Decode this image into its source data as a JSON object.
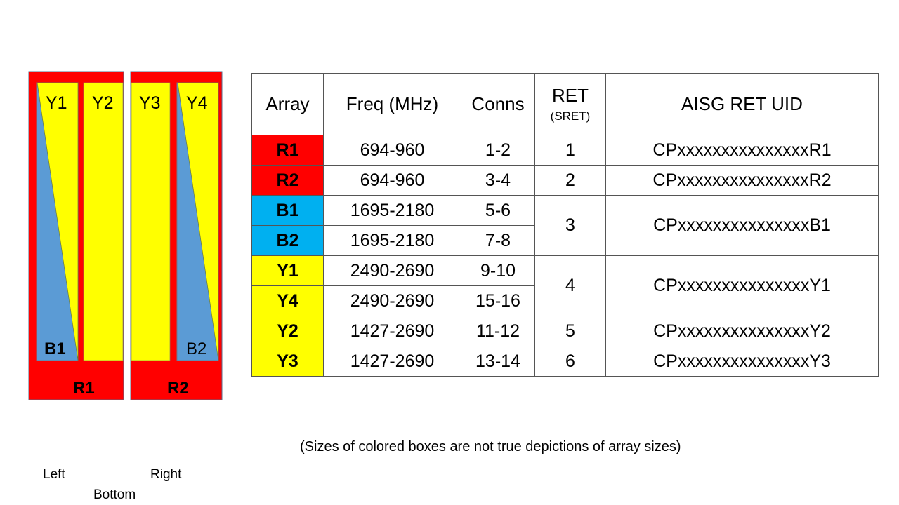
{
  "diagram": {
    "panels": [
      {
        "label": "R1",
        "columns": [
          "Y1",
          "Y2"
        ],
        "sub_label": "B1"
      },
      {
        "label": "R2",
        "columns": [
          "Y3",
          "Y4"
        ],
        "sub_label": "B2"
      }
    ],
    "orientation": {
      "left": "Left",
      "right": "Right",
      "bottom": "Bottom"
    },
    "colors": {
      "red": "#ff0000",
      "yellow": "#ffff00",
      "blue": "#5b9bd5",
      "cyan": "#00b0f0"
    }
  },
  "table": {
    "headers": {
      "array": "Array",
      "freq": "Freq (MHz)",
      "conns": "Conns",
      "ret": "RET",
      "ret_sub": "(SRET)",
      "uid": "AISG RET UID"
    },
    "rows": [
      {
        "array": "R1",
        "freq": "694-960",
        "conns": "1-2",
        "ret": "1",
        "uid": "CPxxxxxxxxxxxxxxxR1",
        "color": "#ff0000"
      },
      {
        "array": "R2",
        "freq": "694-960",
        "conns": "3-4",
        "ret": "2",
        "uid": "CPxxxxxxxxxxxxxxxR2",
        "color": "#ff0000"
      },
      {
        "array": "B1",
        "freq": "1695-2180",
        "conns": "5-6",
        "ret": "3",
        "uid": "CPxxxxxxxxxxxxxxxB1",
        "color": "#00b0f0"
      },
      {
        "array": "B2",
        "freq": "1695-2180",
        "conns": "7-8",
        "color": "#00b0f0"
      },
      {
        "array": "Y1",
        "freq": "2490-2690",
        "conns": "9-10",
        "ret": "4",
        "uid": "CPxxxxxxxxxxxxxxxY1",
        "color": "#ffff00"
      },
      {
        "array": "Y4",
        "freq": "2490-2690",
        "conns": "15-16",
        "color": "#ffff00"
      },
      {
        "array": "Y2",
        "freq": "1427-2690",
        "conns": "11-12",
        "ret": "5",
        "uid": "CPxxxxxxxxxxxxxxxY2",
        "color": "#ffff00"
      },
      {
        "array": "Y3",
        "freq": "1427-2690",
        "conns": "13-14",
        "ret": "6",
        "uid": "CPxxxxxxxxxxxxxxxY3",
        "color": "#ffff00"
      }
    ]
  },
  "note": "(Sizes of colored boxes are not true depictions of array sizes)"
}
